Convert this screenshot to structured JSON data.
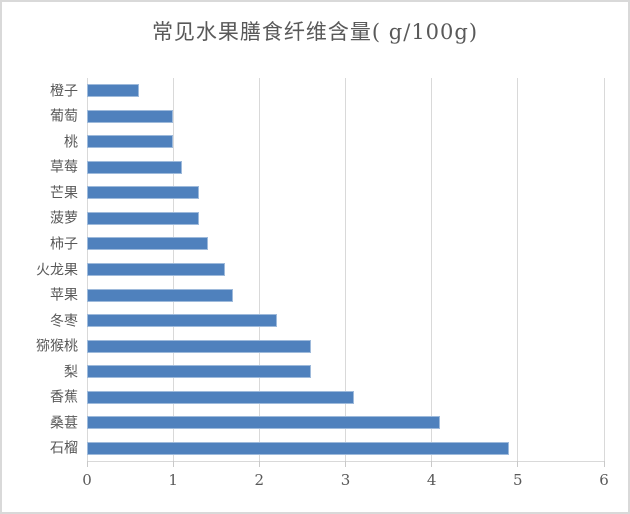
{
  "window": {
    "background": "#ffffff",
    "border_color": "#d9d9d9"
  },
  "chart_data": {
    "type": "bar",
    "orientation": "horizontal",
    "title": "常见水果膳食纤维含量( g/100g)",
    "categories": [
      "橙子",
      "葡萄",
      "桃",
      "草莓",
      "芒果",
      "菠萝",
      "柿子",
      "火龙果",
      "苹果",
      "冬枣",
      "猕猴桃",
      "梨",
      "香蕉",
      "桑葚",
      "石榴"
    ],
    "values": [
      0.6,
      1.0,
      1.0,
      1.1,
      1.3,
      1.3,
      1.4,
      1.6,
      1.7,
      2.2,
      2.6,
      2.6,
      3.1,
      4.1,
      4.9
    ],
    "category_order_note": "top-to-bottom as displayed",
    "xlabel": "",
    "ylabel": "",
    "xlim": [
      0,
      6
    ],
    "x_ticks": [
      0,
      1,
      2,
      3,
      4,
      5,
      6
    ],
    "grid": true,
    "legend": false,
    "colors": {
      "bar": "#4f81bd",
      "gridline": "#d9d9d9",
      "axis": "#d9d9d9",
      "text": "#595959"
    }
  }
}
